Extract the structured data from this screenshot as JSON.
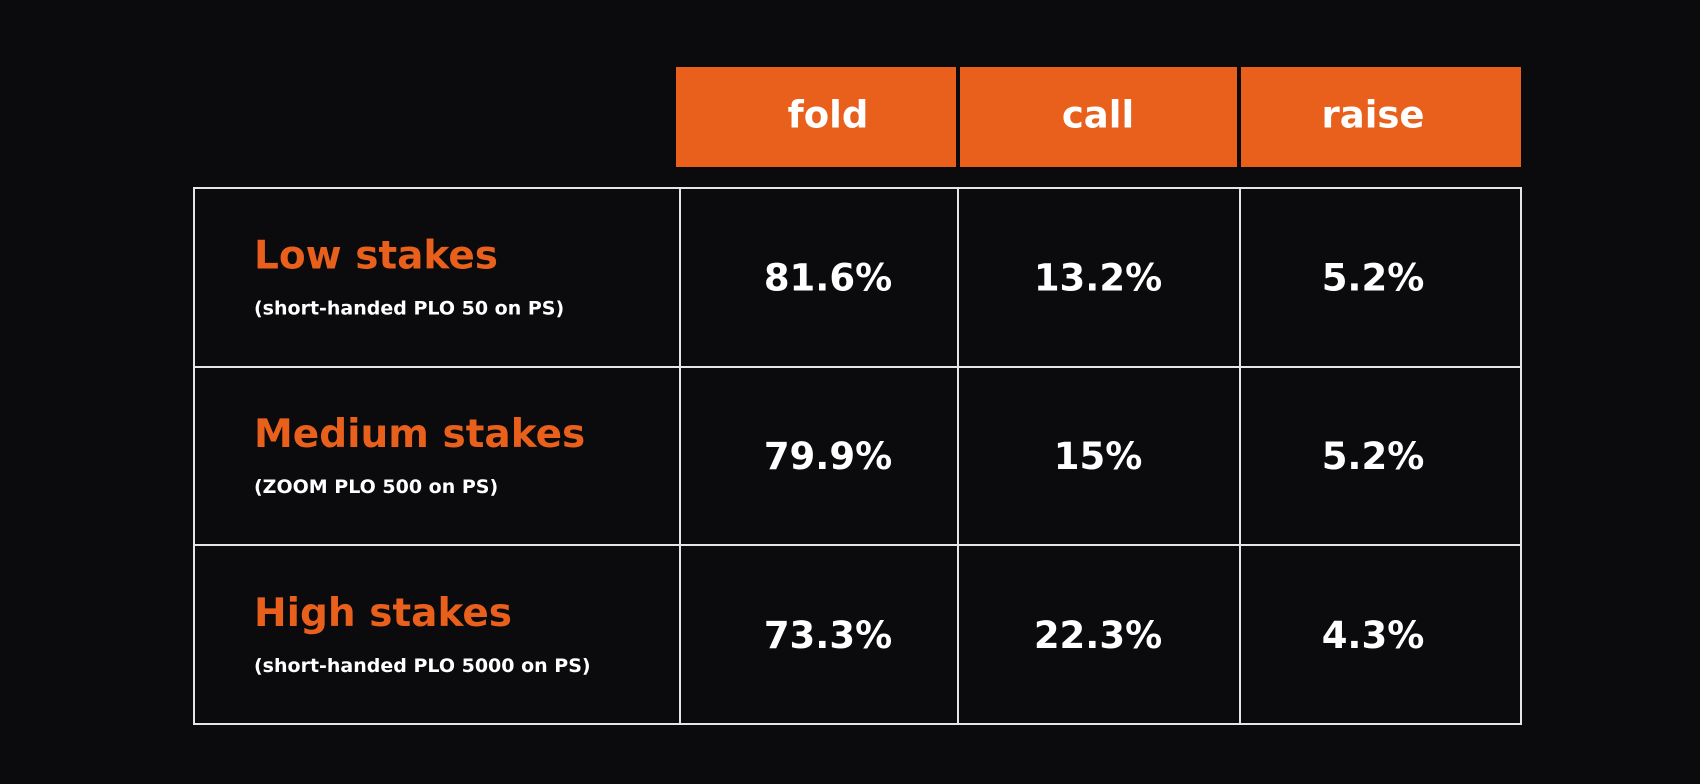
{
  "table": {
    "header": [
      "fold",
      "call",
      "raise"
    ],
    "rows": [
      {
        "label": "Low stakes",
        "sublabel": "(short-handed PLO 50 on PS)",
        "values": [
          "81.6%",
          "13.2%",
          "5.2%"
        ]
      },
      {
        "label": "Medium stakes",
        "sublabel": "(ZOOM PLO 500 on PS)",
        "values": [
          "79.9%",
          "15%",
          "5.2%"
        ]
      },
      {
        "label": "High stakes",
        "sublabel": "(short-handed PLO 5000 on PS)",
        "values": [
          "73.3%",
          "22.3%",
          "4.3%"
        ]
      }
    ]
  }
}
